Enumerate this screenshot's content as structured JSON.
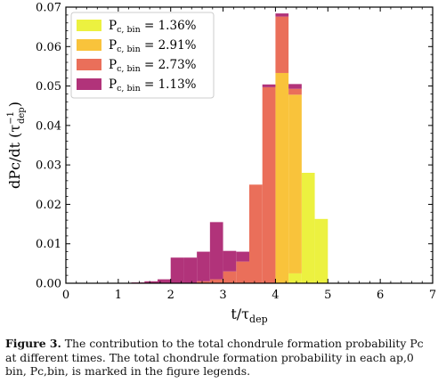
{
  "chart_data": {
    "type": "bar",
    "stacked": true,
    "xlabel": "t/τ",
    "xlabel_sub": "dep",
    "ylabel": "dPc/dt (τ",
    "ylabel_sup": "−1",
    "ylabel_sub": "dep",
    "xlim": [
      0,
      7
    ],
    "ylim": [
      0,
      0.07
    ],
    "bin_width": 0.25,
    "xticks": [
      "0",
      "1",
      "2",
      "3",
      "4",
      "5",
      "6",
      "7"
    ],
    "yticks": [
      "0.00",
      "0.01",
      "0.02",
      "0.03",
      "0.04",
      "0.05",
      "0.06",
      "0.07"
    ],
    "legend_position": "top-left",
    "series": [
      {
        "name": "P",
        "name_sub": "c, bin",
        "value": "= 1.36%",
        "color": "#ecf140",
        "x": [
          3.75,
          4.0,
          4.25,
          4.5,
          4.75
        ],
        "values": [
          0.0,
          0.0,
          0.0025,
          0.028,
          0.0163
        ]
      },
      {
        "name": "P",
        "name_sub": "c, bin",
        "value": "= 2.91%",
        "color": "#f9c33b",
        "x": [
          3.75,
          4.0,
          4.25
        ],
        "values": [
          0.0,
          0.0533,
          0.0453
        ]
      },
      {
        "name": "P",
        "name_sub": "c, bin",
        "value": "= 2.73%",
        "color": "#ea6f5a",
        "x": [
          2.5,
          2.75,
          3.0,
          3.25,
          3.5,
          3.75,
          4.0,
          4.25
        ],
        "values": [
          0.0005,
          0.001,
          0.003,
          0.0055,
          0.025,
          0.0497,
          0.0143,
          0.0015
        ]
      },
      {
        "name": "P",
        "name_sub": "c, bin",
        "value": "= 1.13%",
        "color": "#b1337a",
        "x": [
          1.25,
          1.5,
          1.75,
          2.0,
          2.25,
          2.5,
          2.75,
          3.0,
          3.25,
          3.5,
          3.75,
          4.0,
          4.25
        ],
        "values": [
          0.0002,
          0.0005,
          0.001,
          0.0065,
          0.0065,
          0.0075,
          0.0145,
          0.0052,
          0.0025,
          0.0,
          0.0007,
          0.0008,
          0.0012
        ]
      }
    ]
  },
  "caption": {
    "label": "Figure 3.",
    "text": "The contribution to the total chondrule formation probability Pc at different times. The total chondrule formation probability in each ap,0 bin, Pc,bin, is marked in the figure legends."
  }
}
